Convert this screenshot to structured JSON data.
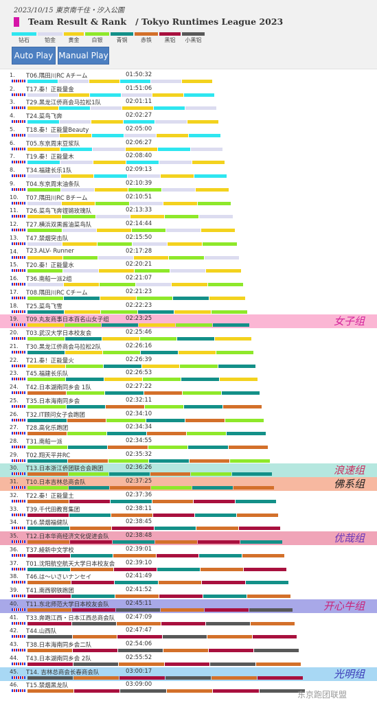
{
  "header": {
    "date": "2023/10/15 東京南千住・汐入公園",
    "title_left": "Team Result & Rank",
    "title_right": "/ Tokyo Runtimes League 2023",
    "title_color": "#d615a8"
  },
  "legend": [
    {
      "label": "钻石",
      "color": "#2ee6f0"
    },
    {
      "label": "铂金",
      "color": "#dcdcf0"
    },
    {
      "label": "黄金",
      "color": "#f3d21e"
    },
    {
      "label": "白银",
      "color": "#8ee82a"
    },
    {
      "label": "青铜",
      "color": "#139088"
    },
    {
      "label": "赤铁",
      "color": "#d3702a"
    },
    {
      "label": "黑铝",
      "color": "#a8103e"
    },
    {
      "label": "小黑铝",
      "color": "#585858"
    }
  ],
  "buttons": {
    "auto_play": "Auto Play",
    "manual_play": "Manual Play"
  },
  "highlights": [
    {
      "rank": 19,
      "label": "女子组",
      "bg": "#fbb6d4",
      "color": "#d4239b"
    },
    {
      "rank": 30,
      "label": "浪速组",
      "bg": "#b5e7df",
      "color": "#c83060"
    },
    {
      "rank": 31,
      "label": "佛系组",
      "bg": "#f7b8a0",
      "color": "#222222"
    },
    {
      "rank": 35,
      "label": "优哉组",
      "bg": "#f0a4b8",
      "color": "#6a36b8"
    },
    {
      "rank": 40,
      "label": "开心牛组",
      "bg": "#a8a8e8",
      "color": "#c8257a"
    },
    {
      "rank": 45,
      "label": "光明组",
      "bg": "#a8d8f4",
      "color": "#3a3ab8"
    }
  ],
  "rows": [
    {
      "rank": "1.",
      "team": "T06.隅田川RC Aチーム",
      "time": "01:50:32"
    },
    {
      "rank": "2.",
      "team": "T17.秦！正能量金",
      "time": "01:51:06"
    },
    {
      "rank": "3.",
      "team": "T29.黑龙江侨商会马拉松1队",
      "time": "02:01:11"
    },
    {
      "rank": "4.",
      "team": "T24.菜鸟飞奔",
      "time": "02:02:27"
    },
    {
      "rank": "5.",
      "team": "T18.秦！正能量Beauty",
      "time": "02:05:00"
    },
    {
      "rank": "6.",
      "team": "T05.东京周末豆浆队",
      "time": "02:06:27"
    },
    {
      "rank": "7.",
      "team": "T19.秦！正能量木",
      "time": "02:08:40"
    },
    {
      "rank": "8.",
      "team": "T34.福建长乐1队",
      "time": "02:09:13"
    },
    {
      "rank": "9.",
      "team": "T04.东京周末油条队",
      "time": "02:10:39"
    },
    {
      "rank": "10.",
      "team": "T07.隅田川RC Bチーム",
      "time": "02:10:51"
    },
    {
      "rank": "11.",
      "team": "T26.菜鸟飞奔铿锵玫瑰队",
      "time": "02:13:33"
    },
    {
      "rank": "12.",
      "team": "T27.横浜双黒酱油菜鸟队",
      "time": "02:14:44"
    },
    {
      "rank": "13.",
      "team": "T47.禁烟突击队",
      "time": "02:15:50"
    },
    {
      "rank": "14.",
      "team": "T23.ALV- Runner",
      "time": "02:17:28"
    },
    {
      "rank": "15.",
      "team": "T20.秦！正能量水",
      "time": "02:20:21"
    },
    {
      "rank": "16.",
      "team": "T36.南船一派2组",
      "time": "02:21:07"
    },
    {
      "rank": "17.",
      "team": "T08.隅田川RC Cチーム",
      "time": "02:21:23"
    },
    {
      "rank": "18.",
      "team": "T25.菜鸟飞雪",
      "time": "02:22:23"
    },
    {
      "rank": "19.",
      "team": "T09.丸友商事日本百名山女子组",
      "time": "02:23:25"
    },
    {
      "rank": "20.",
      "team": "T03.武汉大学日本校友会",
      "time": "02:25:46"
    },
    {
      "rank": "21.",
      "team": "T30.黑龙江侨商会马拉松2队",
      "time": "02:26:16"
    },
    {
      "rank": "22.",
      "team": "T21.秦！正能量火",
      "time": "02:26:39"
    },
    {
      "rank": "23.",
      "team": "T45.福建长乐队",
      "time": "02:26:53"
    },
    {
      "rank": "24.",
      "team": "T42.日本湖南同乡会 1队",
      "time": "02:27:22"
    },
    {
      "rank": "25.",
      "team": "T35.日本海南同乡会",
      "time": "02:32:11"
    },
    {
      "rank": "26.",
      "team": "T32.IT顾问女子会跑团",
      "time": "02:34:10"
    },
    {
      "rank": "27.",
      "team": "T28.高化乐跑团",
      "time": "02:34:34"
    },
    {
      "rank": "28.",
      "team": "T31.南船一派",
      "time": "02:34:55"
    },
    {
      "rank": "29.",
      "team": "T02.翔天平井RC",
      "time": "02:35:32"
    },
    {
      "rank": "30.",
      "team": "T13.日本浙江侨团联合会跑团",
      "time": "02:36:26"
    },
    {
      "rank": "31.",
      "team": "T10.日本吉林总商会队",
      "time": "02:37:25"
    },
    {
      "rank": "32.",
      "team": "T22.秦！正能量土",
      "time": "02:37:36"
    },
    {
      "rank": "33.",
      "team": "T39.千代田教育集团",
      "time": "02:38:11"
    },
    {
      "rank": "34.",
      "team": "T16.禁烟福健队",
      "time": "02:38:45"
    },
    {
      "rank": "35.",
      "team": "T12.日本华商经济文化促进会队",
      "time": "02:38:48"
    },
    {
      "rank": "36.",
      "team": "T37.綾新中文学校",
      "time": "02:39:01"
    },
    {
      "rank": "37.",
      "team": "T01.沈阳航空航天大学日本校友会",
      "time": "02:39:10"
    },
    {
      "rank": "38.",
      "team": "T46.は〜いさいナンセイ",
      "time": "02:41:49"
    },
    {
      "rank": "39.",
      "team": "T41.南西钢铁跑团",
      "time": "02:41:52"
    },
    {
      "rank": "40.",
      "team": "T11.东北师范大学日本校友会队",
      "time": "02:45:11"
    },
    {
      "rank": "41.",
      "team": "T33.奔跑江西・日本江西总商会队",
      "time": "02:47:09"
    },
    {
      "rank": "42.",
      "team": "T44.山西队",
      "time": "02:47:47"
    },
    {
      "rank": "43.",
      "team": "T38.日本海南同乡会二队",
      "time": "02:54:06"
    },
    {
      "rank": "44.",
      "team": "T43.日本湖南同乡会 2队",
      "time": "02:55:52"
    },
    {
      "rank": "45.",
      "team": "T14. 吉林总商会长春商会队",
      "time": "03:00:17"
    },
    {
      "rank": "46.",
      "team": "T15.禁烟黑龙队",
      "time": "03:09:00"
    }
  ],
  "watermark": "东京跑团联盟"
}
